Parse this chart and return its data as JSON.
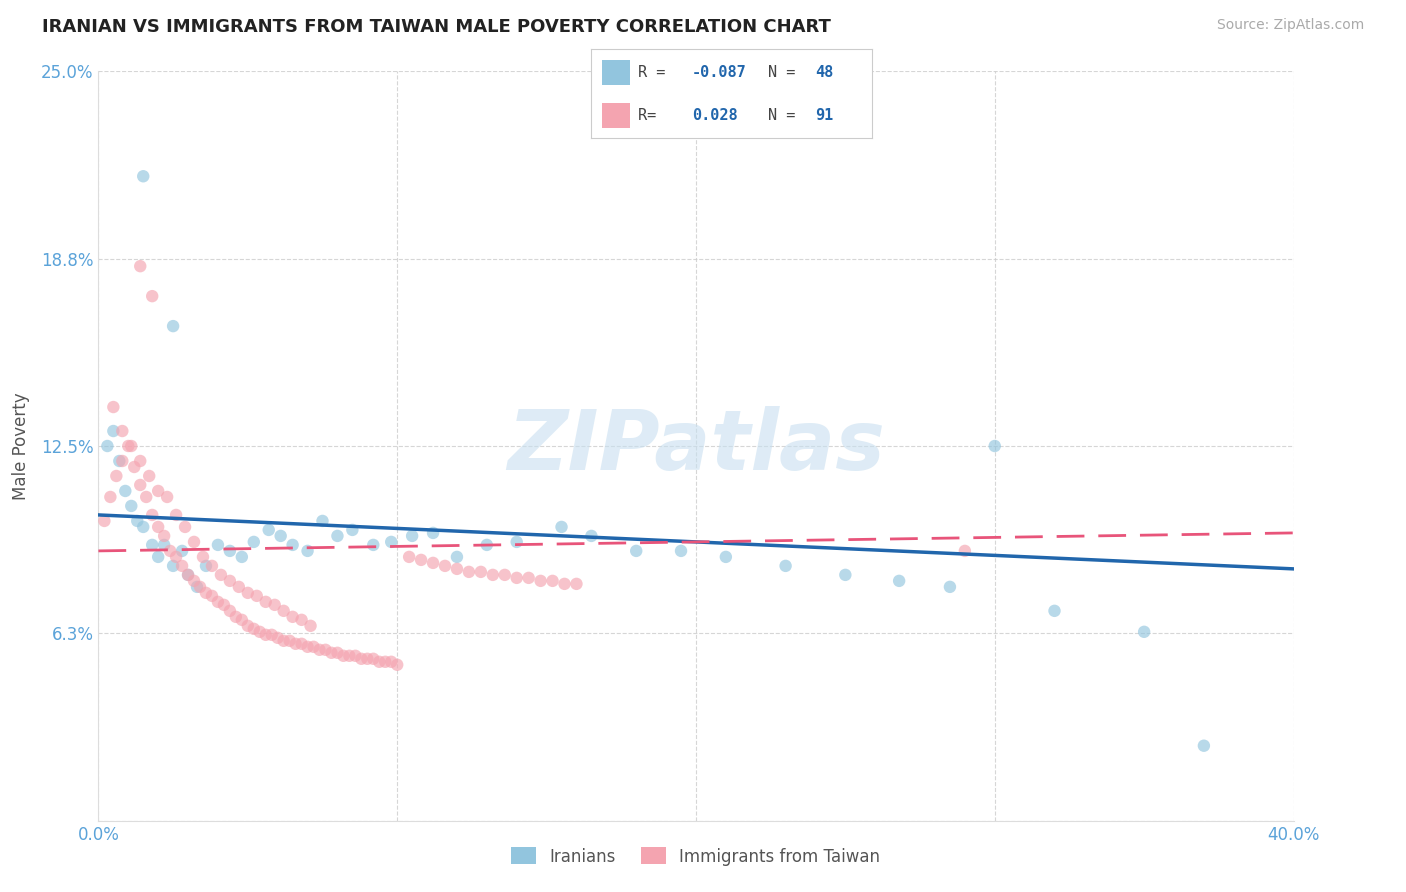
{
  "title": "IRANIAN VS IMMIGRANTS FROM TAIWAN MALE POVERTY CORRELATION CHART",
  "source": "Source: ZipAtlas.com",
  "ylabel": "Male Poverty",
  "xmin": 0.0,
  "xmax": 0.4,
  "ymin": 0.0,
  "ymax": 0.25,
  "yticks": [
    0.0,
    0.0625,
    0.125,
    0.1875,
    0.25
  ],
  "ytick_labels": [
    "",
    "6.3%",
    "12.5%",
    "18.8%",
    "25.0%"
  ],
  "xticks": [
    0.0,
    0.1,
    0.2,
    0.3,
    0.4
  ],
  "xtick_labels": [
    "0.0%",
    "",
    "",
    "",
    "40.0%"
  ],
  "blue_color": "#92c5de",
  "pink_color": "#f4a4b0",
  "blue_line_color": "#2166ac",
  "pink_line_color": "#e8547a",
  "legend_label_blue": "Iranians",
  "legend_label_pink": "Immigrants from Taiwan",
  "watermark": "ZIPatlas",
  "background_color": "#ffffff",
  "grid_color": "#cccccc",
  "title_color": "#222222",
  "axis_label_color": "#555555",
  "tick_color": "#5ba3d9",
  "blue_R": -0.087,
  "blue_N": 48,
  "pink_R": 0.028,
  "pink_N": 91,
  "blue_scatter_x": [
    0.003,
    0.005,
    0.007,
    0.009,
    0.011,
    0.013,
    0.015,
    0.018,
    0.02,
    0.022,
    0.025,
    0.028,
    0.03,
    0.033,
    0.036,
    0.04,
    0.044,
    0.048,
    0.052,
    0.057,
    0.061,
    0.065,
    0.07,
    0.075,
    0.08,
    0.085,
    0.092,
    0.098,
    0.105,
    0.112,
    0.12,
    0.13,
    0.14,
    0.155,
    0.165,
    0.18,
    0.195,
    0.21,
    0.23,
    0.25,
    0.268,
    0.285,
    0.3,
    0.32,
    0.35,
    0.37,
    0.015,
    0.025
  ],
  "blue_scatter_y": [
    0.125,
    0.13,
    0.12,
    0.11,
    0.105,
    0.1,
    0.098,
    0.092,
    0.088,
    0.092,
    0.085,
    0.09,
    0.082,
    0.078,
    0.085,
    0.092,
    0.09,
    0.088,
    0.093,
    0.097,
    0.095,
    0.092,
    0.09,
    0.1,
    0.095,
    0.097,
    0.092,
    0.093,
    0.095,
    0.096,
    0.088,
    0.092,
    0.093,
    0.098,
    0.095,
    0.09,
    0.09,
    0.088,
    0.085,
    0.082,
    0.08,
    0.078,
    0.125,
    0.07,
    0.063,
    0.025,
    0.215,
    0.165
  ],
  "pink_scatter_x": [
    0.002,
    0.004,
    0.006,
    0.008,
    0.01,
    0.012,
    0.014,
    0.016,
    0.018,
    0.02,
    0.022,
    0.024,
    0.026,
    0.028,
    0.03,
    0.032,
    0.034,
    0.036,
    0.038,
    0.04,
    0.042,
    0.044,
    0.046,
    0.048,
    0.05,
    0.052,
    0.054,
    0.056,
    0.058,
    0.06,
    0.062,
    0.064,
    0.066,
    0.068,
    0.07,
    0.072,
    0.074,
    0.076,
    0.078,
    0.08,
    0.082,
    0.084,
    0.086,
    0.088,
    0.09,
    0.092,
    0.094,
    0.096,
    0.098,
    0.1,
    0.005,
    0.008,
    0.011,
    0.014,
    0.017,
    0.02,
    0.023,
    0.026,
    0.029,
    0.032,
    0.035,
    0.038,
    0.041,
    0.044,
    0.047,
    0.05,
    0.053,
    0.056,
    0.059,
    0.062,
    0.065,
    0.068,
    0.071,
    0.104,
    0.108,
    0.112,
    0.116,
    0.12,
    0.124,
    0.128,
    0.132,
    0.136,
    0.14,
    0.144,
    0.148,
    0.152,
    0.156,
    0.16,
    0.014,
    0.018,
    0.29
  ],
  "pink_scatter_y": [
    0.1,
    0.108,
    0.115,
    0.12,
    0.125,
    0.118,
    0.112,
    0.108,
    0.102,
    0.098,
    0.095,
    0.09,
    0.088,
    0.085,
    0.082,
    0.08,
    0.078,
    0.076,
    0.075,
    0.073,
    0.072,
    0.07,
    0.068,
    0.067,
    0.065,
    0.064,
    0.063,
    0.062,
    0.062,
    0.061,
    0.06,
    0.06,
    0.059,
    0.059,
    0.058,
    0.058,
    0.057,
    0.057,
    0.056,
    0.056,
    0.055,
    0.055,
    0.055,
    0.054,
    0.054,
    0.054,
    0.053,
    0.053,
    0.053,
    0.052,
    0.138,
    0.13,
    0.125,
    0.12,
    0.115,
    0.11,
    0.108,
    0.102,
    0.098,
    0.093,
    0.088,
    0.085,
    0.082,
    0.08,
    0.078,
    0.076,
    0.075,
    0.073,
    0.072,
    0.07,
    0.068,
    0.067,
    0.065,
    0.088,
    0.087,
    0.086,
    0.085,
    0.084,
    0.083,
    0.083,
    0.082,
    0.082,
    0.081,
    0.081,
    0.08,
    0.08,
    0.079,
    0.079,
    0.185,
    0.175,
    0.09
  ]
}
